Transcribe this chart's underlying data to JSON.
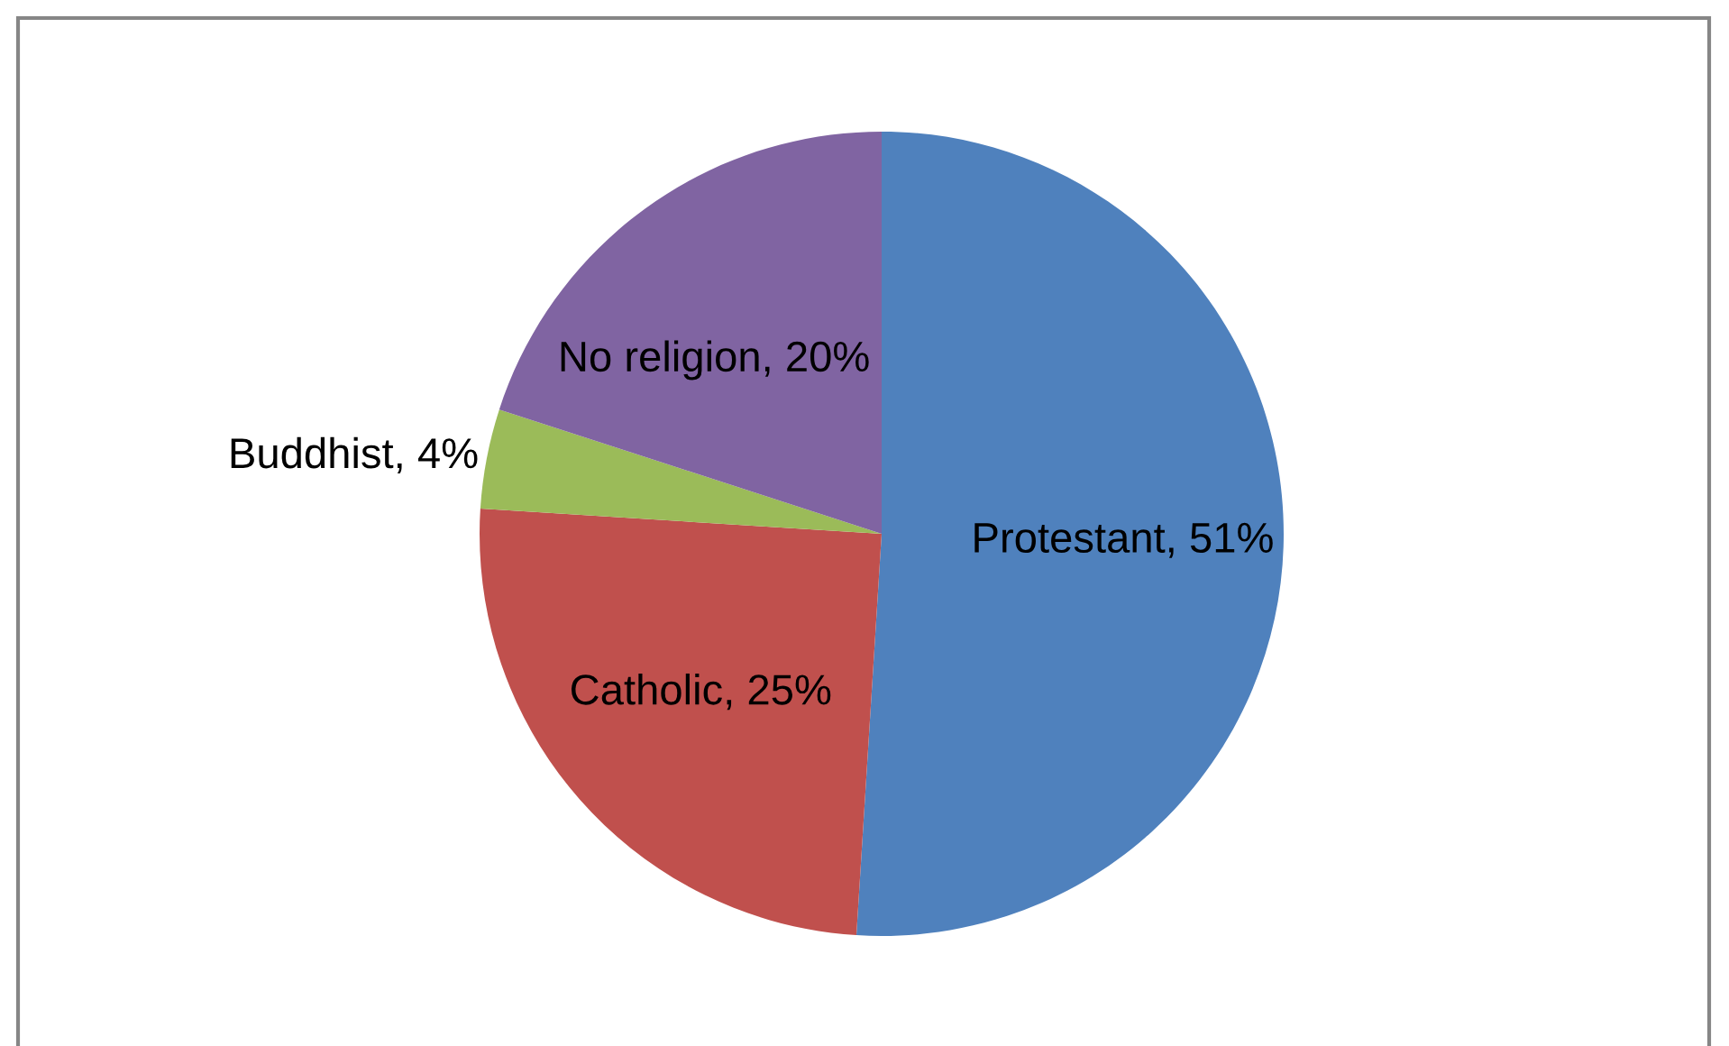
{
  "chart_data": {
    "type": "pie",
    "categories": [
      "Protestant",
      "Catholic",
      "Buddhist",
      "No religion"
    ],
    "values": [
      51,
      25,
      4,
      20
    ],
    "colors": [
      "#4f81bd",
      "#c0504d",
      "#9bbb59",
      "#8064a2"
    ],
    "value_labels": [
      "51%",
      "25%",
      "4%",
      "20%"
    ]
  }
}
